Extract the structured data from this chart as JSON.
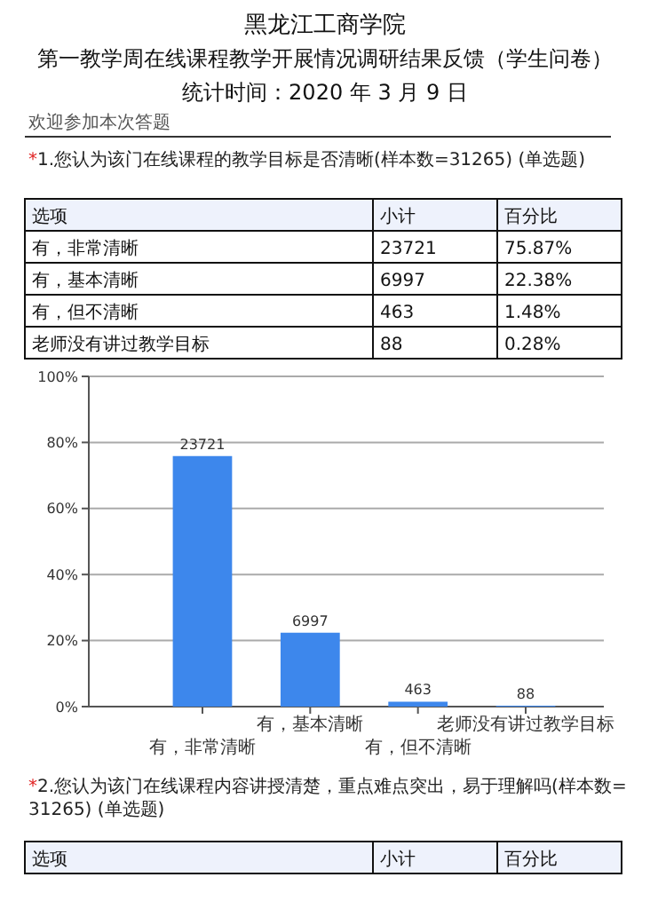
{
  "chart_data": {
    "type": "bar",
    "title": "黑龙江工商学院",
    "subtitle": "第一教学周在线课程教学开展情况调研结果反馈（学生问卷）",
    "annotations": [
      "统计时间：2020 年 3 月 9 日",
      "欢迎参加本次答题",
      "*1.您认为该门在线课程的教学目标是否清晰(样本数=31265) (单选题)",
      "选项",
      "小计",
      "百分比",
      "75.87%",
      "22.38%",
      "1.48%",
      "0.28%",
      "*2.您认为该门在线课程内容讲授清楚，重点难点突出，易于理解吗(样本数=31265) (单选题)",
      "选项",
      "小计",
      "百分比",
      {
        "text": "23721",
        "x": "有，非常清晰",
        "y": 75.87
      },
      {
        "text": "6997",
        "x": "有，基本清晰",
        "y": 22.38
      },
      {
        "text": "463",
        "x": "有，但不清晰",
        "y": 1.48
      },
      {
        "text": "88",
        "x": "老师没有讲过教学目标",
        "y": 0.28
      }
    ],
    "categories": [
      "有，非常清晰",
      "有，基本清晰",
      "有，但不清晰",
      "老师没有讲过教学目标"
    ],
    "values": [
      75.87,
      22.38,
      1.48,
      0.28
    ],
    "color": "#3d87ec",
    "ylim": [
      0,
      100
    ],
    "yticks": [
      {
        "value": 0,
        "label": "0%"
      },
      {
        "value": 20,
        "label": "20%"
      },
      {
        "value": 40,
        "label": "40%"
      },
      {
        "value": 60,
        "label": "60%"
      },
      {
        "value": 80,
        "label": "80%"
      },
      {
        "value": 100,
        "label": "100%"
      }
    ],
    "grid": "y"
  }
}
